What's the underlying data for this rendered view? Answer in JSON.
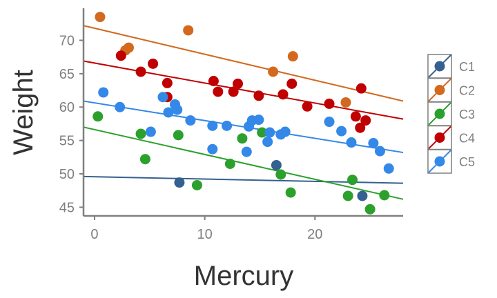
{
  "chart_data": {
    "type": "scatter",
    "title": "",
    "xlabel": "Mercury",
    "ylabel": "Weight",
    "xlim": [
      -1,
      28
    ],
    "ylim": [
      43.7,
      74.8
    ],
    "x_ticks": [
      0,
      10,
      20
    ],
    "y_ticks": [
      45,
      50,
      55,
      60,
      65,
      70
    ],
    "grid": false,
    "legend_position": "right",
    "series": [
      {
        "name": "C1",
        "color": "#35608f",
        "points": [
          [
            7.7,
            48.7
          ],
          [
            16.5,
            51.3
          ],
          [
            24.3,
            46.7
          ]
        ],
        "fit": [
          [
            -1,
            49.6
          ],
          [
            28,
            48.6
          ]
        ]
      },
      {
        "name": "C2",
        "color": "#d2691e",
        "points": [
          [
            0.5,
            73.5
          ],
          [
            2.8,
            68.5
          ],
          [
            3.1,
            68.9
          ],
          [
            8.5,
            71.5
          ],
          [
            16.2,
            65.3
          ],
          [
            18.0,
            67.6
          ],
          [
            22.8,
            60.7
          ]
        ],
        "fit": [
          [
            -1,
            72.2
          ],
          [
            28,
            60.9
          ]
        ]
      },
      {
        "name": "C3",
        "color": "#2ca02c",
        "points": [
          [
            0.3,
            58.6
          ],
          [
            4.2,
            56.0
          ],
          [
            4.6,
            52.2
          ],
          [
            7.6,
            55.8
          ],
          [
            9.3,
            48.3
          ],
          [
            12.3,
            51.5
          ],
          [
            13.4,
            55.3
          ],
          [
            15.2,
            56.2
          ],
          [
            16.9,
            49.9
          ],
          [
            17.8,
            47.2
          ],
          [
            23.0,
            46.7
          ],
          [
            23.4,
            49.1
          ],
          [
            25.0,
            44.7
          ],
          [
            26.3,
            46.8
          ]
        ],
        "fit": [
          [
            -1,
            57.0
          ],
          [
            28,
            46.2
          ]
        ]
      },
      {
        "name": "C4",
        "color": "#c00000",
        "points": [
          [
            2.4,
            67.7
          ],
          [
            4.2,
            65.3
          ],
          [
            5.3,
            66.5
          ],
          [
            6.6,
            63.6
          ],
          [
            6.6,
            61.5
          ],
          [
            10.8,
            63.9
          ],
          [
            11.2,
            62.3
          ],
          [
            12.6,
            62.3
          ],
          [
            13.0,
            63.5
          ],
          [
            14.9,
            61.7
          ],
          [
            17.1,
            61.9
          ],
          [
            17.9,
            63.5
          ],
          [
            19.3,
            60.1
          ],
          [
            21.3,
            60.5
          ],
          [
            23.7,
            58.6
          ],
          [
            24.1,
            56.9
          ],
          [
            24.2,
            62.8
          ],
          [
            24.6,
            58.0
          ]
        ],
        "fit": [
          [
            -1,
            66.9
          ],
          [
            28,
            58.2
          ]
        ]
      },
      {
        "name": "C5",
        "color": "#3388e8",
        "points": [
          [
            0.8,
            62.2
          ],
          [
            2.3,
            60.0
          ],
          [
            5.1,
            56.3
          ],
          [
            6.2,
            61.5
          ],
          [
            6.7,
            59.2
          ],
          [
            7.3,
            60.4
          ],
          [
            7.5,
            59.6
          ],
          [
            8.7,
            58.0
          ],
          [
            10.7,
            57.2
          ],
          [
            10.7,
            53.7
          ],
          [
            12.0,
            57.2
          ],
          [
            13.8,
            53.3
          ],
          [
            14.0,
            57.1
          ],
          [
            14.3,
            58.0
          ],
          [
            14.9,
            58.1
          ],
          [
            15.7,
            54.8
          ],
          [
            15.9,
            56.2
          ],
          [
            16.9,
            55.9
          ],
          [
            17.3,
            56.3
          ],
          [
            21.3,
            57.8
          ],
          [
            22.4,
            56.4
          ],
          [
            23.3,
            54.7
          ],
          [
            25.3,
            54.6
          ],
          [
            25.9,
            53.4
          ],
          [
            26.7,
            50.8
          ]
        ],
        "fit": [
          [
            -1,
            60.9
          ],
          [
            28,
            53.2
          ]
        ]
      }
    ]
  }
}
